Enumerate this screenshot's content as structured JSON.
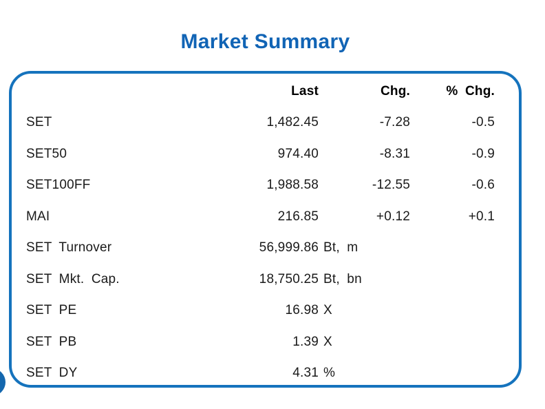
{
  "page": {
    "title": "Market Summary"
  },
  "colors": {
    "title_blue": "#1164b5",
    "border_blue": "#1573bd",
    "circle_blue": "#1467ae",
    "text": "#1a1a1a"
  },
  "table": {
    "headers": {
      "last": "Last",
      "chg": "Chg.",
      "pct_chg": "% Chg."
    },
    "rows": [
      {
        "label": "SET",
        "last": "1,482.45",
        "suffix": "",
        "chg": "-7.28",
        "pct": "-0.5"
      },
      {
        "label": "SET50",
        "last": "974.40",
        "suffix": "",
        "chg": "-8.31",
        "pct": "-0.9"
      },
      {
        "label": "SET100FF",
        "last": "1,988.58",
        "suffix": "",
        "chg": "-12.55",
        "pct": "-0.6"
      },
      {
        "label": "MAI",
        "last": "216.85",
        "suffix": "",
        "chg": "+0.12",
        "pct": "+0.1"
      },
      {
        "label": "SET Turnover",
        "last": "56,999.86",
        "suffix": "Bt, m",
        "chg": "",
        "pct": ""
      },
      {
        "label": "SET Mkt. Cap.",
        "last": "18,750.25",
        "suffix": "Bt, bn",
        "chg": "",
        "pct": ""
      },
      {
        "label": "SET PE",
        "last": "16.98",
        "suffix": "X",
        "chg": "",
        "pct": ""
      },
      {
        "label": "SET PB",
        "last": "1.39",
        "suffix": "X",
        "chg": "",
        "pct": ""
      },
      {
        "label": "SET DY",
        "last": "4.31",
        "suffix": "%",
        "chg": "",
        "pct": ""
      }
    ]
  }
}
